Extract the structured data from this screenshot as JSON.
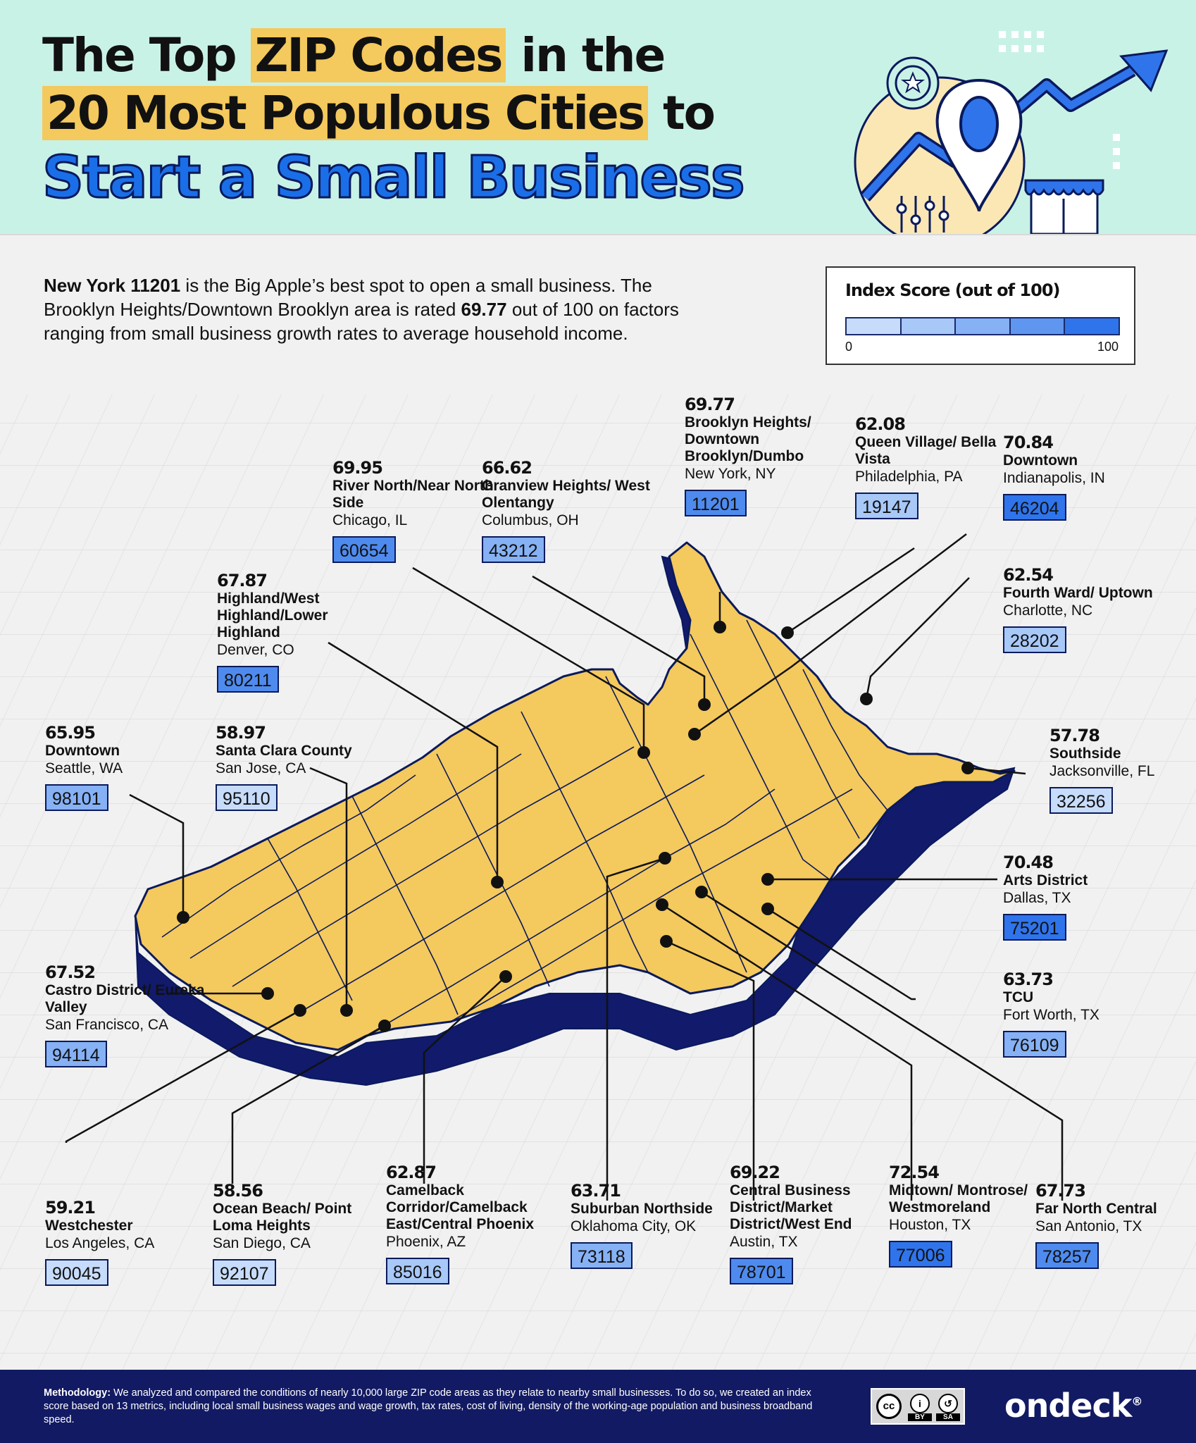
{
  "title": {
    "pre1": "The Top ",
    "hl1": "ZIP Codes",
    "post1": " in the",
    "hl2": "20 Most Populous Cities",
    "post2": " to",
    "line3": "Start a Small Business"
  },
  "intro": {
    "bold1": "New York 11201",
    "text1": " is the Big Apple’s best spot to open a small business. The Brooklyn Heights/Downtown Brooklyn area is rated ",
    "bold2": "69.77",
    "text2": " out of 100 on factors ranging from small business growth rates to average household income."
  },
  "legend": {
    "title": "Index Score (out of 100)",
    "min": "0",
    "max": "100",
    "colors": [
      "#c7dcfb",
      "#a8c8f8",
      "#86b1f4",
      "#5f96ef",
      "#2f74ea"
    ]
  },
  "colors": {
    "land": "#f4c95d",
    "coast": "#111a6b",
    "header": "#c9f2e6",
    "accent_blue": "#1a6fe8",
    "footer": "#121a63"
  },
  "cities": [
    {
      "id": "seattle",
      "score": "65.95",
      "area": "Downtown",
      "loc": "Seattle, WA",
      "zip": "98101",
      "zip_color": "#86b1f4"
    },
    {
      "id": "san-jose",
      "score": "58.97",
      "area": "Santa Clara County",
      "loc": "San Jose, CA",
      "zip": "95110",
      "zip_color": "#c7dcfb"
    },
    {
      "id": "denver",
      "score": "67.87",
      "area": "Highland/West Highland/Lower Highland",
      "loc": "Denver, CO",
      "zip": "80211",
      "zip_color": "#4f8bee"
    },
    {
      "id": "chicago",
      "score": "69.95",
      "area": "River North/Near North Side",
      "loc": "Chicago, IL",
      "zip": "60654",
      "zip_color": "#4f8bee"
    },
    {
      "id": "columbus",
      "score": "66.62",
      "area": "Granview Heights/ West Olentangy",
      "loc": "Columbus, OH",
      "zip": "43212",
      "zip_color": "#86b1f4"
    },
    {
      "id": "new-york",
      "score": "69.77",
      "area": "Brooklyn Heights/ Downtown Brooklyn/Dumbo",
      "loc": "New York, NY",
      "zip": "11201",
      "zip_color": "#4f8bee"
    },
    {
      "id": "philadelphia",
      "score": "62.08",
      "area": "Queen Village/ Bella Vista",
      "loc": "Philadelphia, PA",
      "zip": "19147",
      "zip_color": "#a8c8f8"
    },
    {
      "id": "indianapolis",
      "score": "70.84",
      "area": "Downtown",
      "loc": "Indianapolis, IN",
      "zip": "46204",
      "zip_color": "#2f74ea"
    },
    {
      "id": "charlotte",
      "score": "62.54",
      "area": "Fourth Ward/ Uptown",
      "loc": "Charlotte, NC",
      "zip": "28202",
      "zip_color": "#a8c8f8"
    },
    {
      "id": "jacksonville",
      "score": "57.78",
      "area": "Southside",
      "loc": "Jacksonville, FL",
      "zip": "32256",
      "zip_color": "#c7dcfb"
    },
    {
      "id": "dallas",
      "score": "70.48",
      "area": "Arts District",
      "loc": "Dallas, TX",
      "zip": "75201",
      "zip_color": "#2f74ea"
    },
    {
      "id": "fort-worth",
      "score": "63.73",
      "area": "TCU",
      "loc": "Fort Worth, TX",
      "zip": "76109",
      "zip_color": "#86b1f4"
    },
    {
      "id": "san-francisco",
      "score": "67.52",
      "area": "Castro District/ Eureka Valley",
      "loc": "San Francisco, CA",
      "zip": "94114",
      "zip_color": "#86b1f4"
    },
    {
      "id": "los-angeles",
      "score": "59.21",
      "area": "Westchester",
      "loc": "Los Angeles, CA",
      "zip": "90045",
      "zip_color": "#c7dcfb"
    },
    {
      "id": "san-diego",
      "score": "58.56",
      "area": "Ocean Beach/ Point Loma Heights",
      "loc": "San Diego, CA",
      "zip": "92107",
      "zip_color": "#c7dcfb"
    },
    {
      "id": "phoenix",
      "score": "62.87",
      "area": "Camelback Corridor/Camelback East/Central Phoenix",
      "loc": "Phoenix, AZ",
      "zip": "85016",
      "zip_color": "#a8c8f8"
    },
    {
      "id": "oklahoma-city",
      "score": "63.71",
      "area": "Suburban Northside",
      "loc": "Oklahoma City, OK",
      "zip": "73118",
      "zip_color": "#86b1f4"
    },
    {
      "id": "austin",
      "score": "69.22",
      "area": "Central Business District/Market District/West End",
      "loc": "Austin, TX",
      "zip": "78701",
      "zip_color": "#4f8bee"
    },
    {
      "id": "houston",
      "score": "72.54",
      "area": "Midtown/ Montrose/ Westmoreland",
      "loc": "Houston, TX",
      "zip": "77006",
      "zip_color": "#2f74ea"
    },
    {
      "id": "san-antonio",
      "score": "67.73",
      "area": "Far North Central",
      "loc": "San Antonio, TX",
      "zip": "78257",
      "zip_color": "#4f8bee"
    }
  ],
  "footer": {
    "method_label": "Methodology:",
    "method_text": " We analyzed and compared the conditions of nearly 10,000 large ZIP code areas as they relate to nearby small businesses. To do so, we created an index score based on 13 metrics, including local small business wages and wage growth, tax rates, cost of living, density of the working-age population and business broadband speed.",
    "cc_by": "BY",
    "cc_sa": "SA",
    "brand": "ondeck",
    "brand_mark": "®"
  }
}
